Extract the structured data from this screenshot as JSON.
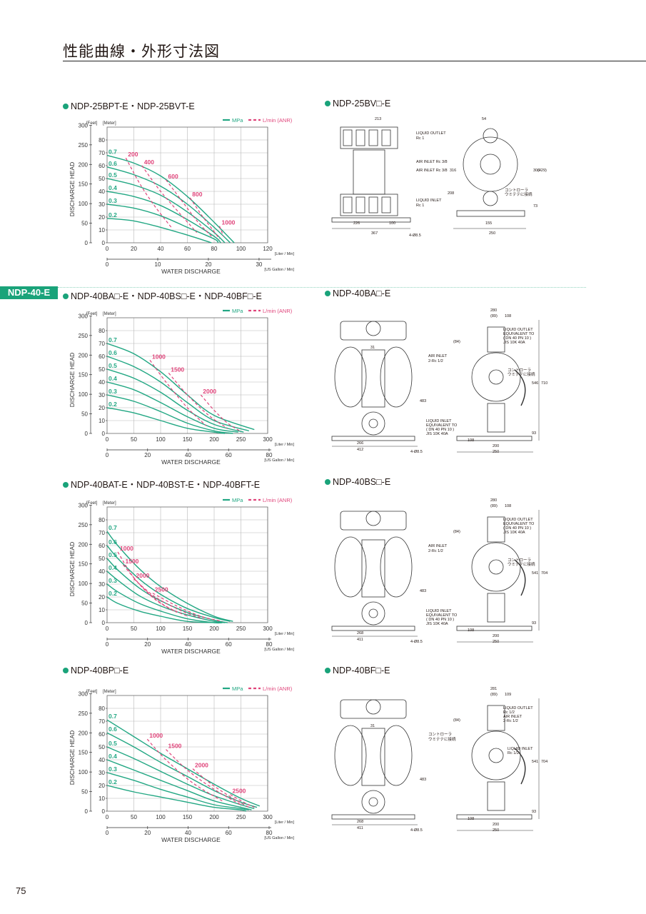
{
  "page": {
    "title": "性能曲線・外形寸法図",
    "number": "75",
    "category_tag": "NDP-40-E"
  },
  "sections": [
    {
      "left_title": "NDP-25BPT-E・NDP-25BVT-E",
      "right_title": "NDP-25BV□-E"
    },
    {
      "left_title": "NDP-40BA□-E・NDP-40BS□-E・NDP-40BF□-E",
      "right_title": "NDP-40BA□-E"
    },
    {
      "left_title": "NDP-40BAT-E・NDP-40BST-E・NDP-40BFT-E",
      "right_title": "NDP-40BS□-E"
    },
    {
      "left_title": "NDP-40BP□-E",
      "right_title": "NDP-40BF□-E"
    }
  ],
  "chart_data": [
    {
      "type": "line",
      "xlabel": "WATER DISCHARGE",
      "ylabel": "DISCHARGE HEAD",
      "x_unit_primary": "[Liter / Min]",
      "x_unit_secondary": "[US Gallon / Min]",
      "y_unit_left": "[Feet]",
      "y_unit_right": "[Meter]",
      "legend": {
        "pressure": "MPa",
        "air": "L/min (ANR)"
      },
      "xlim": [
        0,
        120
      ],
      "ylim": [
        0,
        90
      ],
      "x_ticks": [
        "0",
        "20",
        "40",
        "60",
        "80",
        "100",
        "120"
      ],
      "x2_ticks": [
        "0",
        "10",
        "20",
        "30"
      ],
      "x2_max": 31.7,
      "y_ticks": [
        "0",
        "10",
        "20",
        "30",
        "40",
        "50",
        "60",
        "70",
        "80"
      ],
      "feet_ticks": [
        "0",
        "50",
        "100",
        "150",
        "200",
        "250",
        "300"
      ],
      "series": [
        {
          "name": "0.7",
          "x": [
            0,
            20,
            40,
            60,
            80,
            95
          ],
          "y": [
            68,
            62,
            52,
            36,
            16,
            0
          ]
        },
        {
          "name": "0.6",
          "x": [
            0,
            20,
            40,
            60,
            80,
            92
          ],
          "y": [
            59,
            53,
            44,
            30,
            12,
            0
          ]
        },
        {
          "name": "0.5",
          "x": [
            0,
            20,
            40,
            60,
            80,
            88
          ],
          "y": [
            50,
            45,
            37,
            24,
            8,
            0
          ]
        },
        {
          "name": "0.4",
          "x": [
            0,
            20,
            40,
            60,
            80,
            85
          ],
          "y": [
            40,
            36,
            29,
            18,
            5,
            0
          ]
        },
        {
          "name": "0.3",
          "x": [
            0,
            20,
            40,
            60,
            80,
            83
          ],
          "y": [
            30,
            27,
            21,
            12,
            3,
            0
          ]
        },
        {
          "name": "0.2",
          "x": [
            0,
            20,
            40,
            60,
            78
          ],
          "y": [
            19,
            17,
            12,
            6,
            0
          ]
        }
      ],
      "air_series": [
        {
          "name": "200",
          "x": [
            14,
            25,
            36,
            48
          ],
          "y": [
            66,
            45,
            28,
            12
          ]
        },
        {
          "name": "400",
          "x": [
            26,
            40,
            55,
            67
          ],
          "y": [
            60,
            40,
            22,
            8
          ]
        },
        {
          "name": "600",
          "x": [
            44,
            57,
            68,
            78
          ],
          "y": [
            49,
            31,
            16,
            5
          ]
        },
        {
          "name": "800",
          "x": [
            62,
            71,
            79,
            84
          ],
          "y": [
            35,
            21,
            10,
            3
          ]
        },
        {
          "name": "1000",
          "x": [
            84,
            87
          ],
          "y": [
            13,
            5
          ]
        }
      ]
    },
    {
      "type": "line",
      "xlabel": "WATER DISCHARGE",
      "ylabel": "DISCHARGE HEAD",
      "x_unit_primary": "[Liter / Min]",
      "x_unit_secondary": "[US Gallon / Min]",
      "y_unit_left": "[Feet]",
      "y_unit_right": "[Meter]",
      "legend": {
        "pressure": "MPa",
        "air": "L/min (ANR)"
      },
      "xlim": [
        0,
        300
      ],
      "ylim": [
        0,
        90
      ],
      "x_ticks": [
        "0",
        "50",
        "100",
        "150",
        "200",
        "250",
        "300"
      ],
      "x2_ticks": [
        "0",
        "20",
        "40",
        "60",
        "80"
      ],
      "x2_max": 79.3,
      "y_ticks": [
        "0",
        "10",
        "20",
        "30",
        "40",
        "50",
        "60",
        "70",
        "80"
      ],
      "feet_ticks": [
        "0",
        "50",
        "100",
        "150",
        "200",
        "250",
        "300"
      ],
      "series": [
        {
          "name": "0.7",
          "x": [
            0,
            50,
            100,
            150,
            200,
            275
          ],
          "y": [
            70,
            62,
            48,
            30,
            14,
            3
          ]
        },
        {
          "name": "0.6",
          "x": [
            0,
            50,
            100,
            150,
            200,
            265
          ],
          "y": [
            60,
            52,
            40,
            24,
            10,
            2
          ]
        },
        {
          "name": "0.5",
          "x": [
            0,
            50,
            100,
            150,
            200,
            255
          ],
          "y": [
            50,
            43,
            32,
            18,
            7,
            1
          ]
        },
        {
          "name": "0.4",
          "x": [
            0,
            50,
            100,
            150,
            200,
            245
          ],
          "y": [
            40,
            34,
            24,
            13,
            4,
            1
          ]
        },
        {
          "name": "0.3",
          "x": [
            0,
            50,
            100,
            150,
            200,
            235
          ],
          "y": [
            30,
            25,
            17,
            8,
            2,
            0
          ]
        },
        {
          "name": "0.2",
          "x": [
            0,
            50,
            100,
            150,
            200,
            220
          ],
          "y": [
            20,
            16,
            10,
            4,
            1,
            0
          ]
        }
      ],
      "air_series": [
        {
          "name": "1000",
          "x": [
            80,
            110,
            150,
            185
          ],
          "y": [
            57,
            40,
            20,
            6
          ]
        },
        {
          "name": "1500",
          "x": [
            115,
            150,
            190,
            225
          ],
          "y": [
            47,
            30,
            14,
            4
          ]
        },
        {
          "name": "2000",
          "x": [
            175,
            200,
            225,
            248
          ],
          "y": [
            30,
            18,
            8,
            2
          ]
        }
      ]
    },
    {
      "type": "line",
      "xlabel": "WATER DISCHARGE",
      "ylabel": "DISCHARGE HEAD",
      "x_unit_primary": "[Liter / Min]",
      "x_unit_secondary": "[US Gallon / Min]",
      "y_unit_left": "[Feet]",
      "y_unit_right": "[Meter]",
      "legend": {
        "pressure": "MPa",
        "air": "L/min (ANR)"
      },
      "xlim": [
        0,
        300
      ],
      "ylim": [
        0,
        90
      ],
      "x_ticks": [
        "0",
        "50",
        "100",
        "150",
        "200",
        "250",
        "300"
      ],
      "x2_ticks": [
        "0",
        "20",
        "40",
        "60",
        "80"
      ],
      "x2_max": 79.3,
      "y_ticks": [
        "0",
        "10",
        "20",
        "30",
        "40",
        "50",
        "60",
        "70",
        "80"
      ],
      "feet_ticks": [
        "0",
        "50",
        "100",
        "150",
        "200",
        "250",
        "300"
      ],
      "series": [
        {
          "name": "0.7",
          "x": [
            0,
            20,
            60,
            100,
            150,
            200,
            235
          ],
          "y": [
            71,
            60,
            42,
            28,
            15,
            5,
            1
          ]
        },
        {
          "name": "0.6",
          "x": [
            0,
            20,
            60,
            100,
            150,
            200,
            230
          ],
          "y": [
            60,
            50,
            34,
            22,
            11,
            4,
            1
          ]
        },
        {
          "name": "0.5",
          "x": [
            0,
            20,
            60,
            100,
            150,
            200,
            225
          ],
          "y": [
            50,
            41,
            27,
            17,
            8,
            2,
            0
          ]
        },
        {
          "name": "0.4",
          "x": [
            0,
            20,
            60,
            100,
            150,
            200,
            220
          ],
          "y": [
            40,
            33,
            21,
            13,
            6,
            1,
            0
          ]
        },
        {
          "name": "0.3",
          "x": [
            0,
            20,
            60,
            100,
            150,
            200,
            215
          ],
          "y": [
            30,
            24,
            15,
            9,
            3,
            0,
            0
          ]
        },
        {
          "name": "0.2",
          "x": [
            0,
            20,
            60,
            100,
            150,
            205
          ],
          "y": [
            20,
            15,
            9,
            5,
            1,
            0
          ]
        }
      ],
      "air_series": [
        {
          "name": "1000",
          "x": [
            20,
            50,
            90,
            130
          ],
          "y": [
            55,
            35,
            18,
            8
          ]
        },
        {
          "name": "1500",
          "x": [
            30,
            65,
            105,
            150
          ],
          "y": [
            45,
            28,
            14,
            5
          ]
        },
        {
          "name": "2000",
          "x": [
            50,
            90,
            140,
            180
          ],
          "y": [
            34,
            20,
            9,
            3
          ]
        },
        {
          "name": "2500",
          "x": [
            85,
            130,
            175,
            215
          ],
          "y": [
            23,
            13,
            5,
            1
          ]
        }
      ]
    },
    {
      "type": "line",
      "xlabel": "WATER DISCHARGE",
      "ylabel": "DISCHARGE HEAD",
      "x_unit_primary": "[Liter / Min]",
      "x_unit_secondary": "[US Gallon / Min]",
      "y_unit_left": "[Feet]",
      "y_unit_right": "[Meter]",
      "legend": {
        "pressure": "MPa",
        "air": "L/min (ANR)"
      },
      "xlim": [
        0,
        300
      ],
      "ylim": [
        0,
        90
      ],
      "x_ticks": [
        "0",
        "50",
        "100",
        "150",
        "200",
        "250",
        "300"
      ],
      "x2_ticks": [
        "0",
        "20",
        "40",
        "60",
        "80"
      ],
      "x2_max": 79.3,
      "y_ticks": [
        "0",
        "10",
        "20",
        "30",
        "40",
        "50",
        "60",
        "70",
        "80"
      ],
      "feet_ticks": [
        "0",
        "50",
        "100",
        "150",
        "200",
        "250",
        "300"
      ],
      "series": [
        {
          "name": "0.7",
          "x": [
            0,
            50,
            100,
            150,
            200,
            250,
            285
          ],
          "y": [
            71,
            58,
            45,
            33,
            21,
            10,
            4
          ]
        },
        {
          "name": "0.6",
          "x": [
            0,
            50,
            100,
            150,
            200,
            250,
            280
          ],
          "y": [
            61,
            50,
            38,
            27,
            16,
            7,
            3
          ]
        },
        {
          "name": "0.5",
          "x": [
            0,
            50,
            100,
            150,
            200,
            250,
            275
          ],
          "y": [
            50,
            41,
            31,
            21,
            12,
            5,
            2
          ]
        },
        {
          "name": "0.4",
          "x": [
            0,
            50,
            100,
            150,
            200,
            250,
            270
          ],
          "y": [
            40,
            32,
            24,
            16,
            8,
            3,
            1
          ]
        },
        {
          "name": "0.3",
          "x": [
            0,
            50,
            100,
            150,
            200,
            250,
            265
          ],
          "y": [
            30,
            24,
            17,
            11,
            5,
            2,
            1
          ]
        },
        {
          "name": "0.2",
          "x": [
            0,
            50,
            100,
            150,
            200,
            250,
            260
          ],
          "y": [
            20,
            15,
            11,
            7,
            3,
            1,
            0
          ]
        }
      ],
      "air_series": [
        {
          "name": "1000",
          "x": [
            75,
            110,
            160,
            215
          ],
          "y": [
            56,
            40,
            22,
            8
          ]
        },
        {
          "name": "1500",
          "x": [
            110,
            150,
            200,
            250
          ],
          "y": [
            48,
            32,
            17,
            5
          ]
        },
        {
          "name": "2000",
          "x": [
            160,
            195,
            235,
            265
          ],
          "y": [
            33,
            21,
            10,
            3
          ]
        },
        {
          "name": "2500",
          "x": [
            230,
            255,
            275
          ],
          "y": [
            13,
            7,
            3
          ]
        }
      ]
    }
  ],
  "drawings": [
    {
      "dims": [
        "213",
        "54",
        "367",
        "226",
        "100",
        "155",
        "250",
        "306",
        "(429)",
        "316",
        "208",
        "73",
        "4-Ø8.5"
      ],
      "labels": [
        "LIQUID OUTLET",
        "Rc 1",
        "AIR INLET Rc 3/8",
        "AIR INLET Rc 3/8",
        "LIQUID INLET",
        "Rc 1",
        "コントローラ",
        "ウミテテに接続"
      ]
    },
    {
      "dims": [
        "280",
        "(89)",
        "108",
        "(84)",
        "266",
        "412",
        "4-Ø8.5",
        "108",
        "200",
        "250",
        "483",
        "546",
        "710",
        "93",
        "31"
      ],
      "labels": [
        "LIQUID OUTLET",
        "EQUIVALENT TO",
        "( DN 40 PN 10 )",
        "JIS 10K 40A",
        "AIR INLET",
        "2-Rc 1/2",
        "コントローラ",
        "ウミテテに接続",
        "LIQUID INLET",
        "EQUIVALENT TO",
        "( DN 40 PN 10 )",
        "JIS 10K 40A"
      ]
    },
    {
      "dims": [
        "280",
        "(89)",
        "108",
        "(84)",
        "268",
        "411",
        "4-Ø8.5",
        "108",
        "200",
        "250",
        "483",
        "541",
        "704",
        "93"
      ],
      "labels": [
        "LIQUID OUTLET",
        "EQUIVALENT TO",
        "( DN 40 PN 10 )",
        "JIS 10K 40A",
        "AIR INLET",
        "2-Rc 1/2",
        "コントローラ",
        "ウミテテに接続",
        "LIQUID INLET",
        "EQUIVALENT TO",
        "( DN 40 PN 10 )",
        "JIS 10K 40A"
      ]
    },
    {
      "dims": [
        "281",
        "(89)",
        "109",
        "(84)",
        "268",
        "411",
        "4-Ø8.5",
        "108",
        "200",
        "250",
        "483",
        "541",
        "704",
        "93",
        "31"
      ],
      "labels": [
        "LIQUID OUTLET",
        "Rc 1/2",
        "AIR INLET",
        "2-Rc 1/2",
        "コントローラ",
        "ウミテテに接続",
        "LIQUID INLET",
        "Rc 1/2"
      ]
    }
  ],
  "colors": {
    "accent": "#1aa37a",
    "curve": "#22a783",
    "air": "#e0457b",
    "grid": "#b8b8b8"
  }
}
